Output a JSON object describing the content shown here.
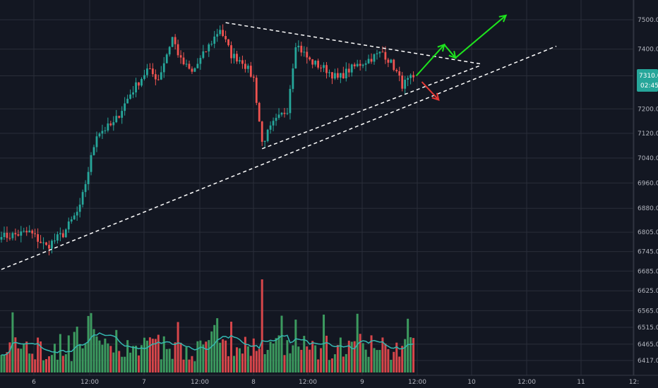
{
  "colors": {
    "background": "#131722",
    "grid": "#2a2e39",
    "up": "#26a69a",
    "down": "#ef5350",
    "vol_up": "#3c9a5f",
    "vol_down": "#d6464a",
    "ma": "#35b7b0",
    "trendline": "#ffffff",
    "arrow_up": "#1ee31e",
    "arrow_down": "#e53935",
    "badge": "#26a69a",
    "axis_text": "#b2b5be"
  },
  "chart_data": {
    "type": "candlestick",
    "y_axis": {
      "ticks": [
        "7500.0",
        "7400.0",
        "7310.0",
        "7200.0",
        "7120.0",
        "7040.0",
        "6960.0",
        "6880.0",
        "6805.0",
        "6745.0",
        "6685.0",
        "6625.0",
        "6565.0",
        "6515.0",
        "6465.0",
        "6417.0"
      ],
      "scale": "log"
    },
    "x_axis": {
      "ticks": [
        "6",
        "12:00",
        "7",
        "12:00",
        "8",
        "12:00",
        "9",
        "12:00",
        "10",
        "12:00",
        "11",
        "12:"
      ]
    },
    "price_badge": {
      "value": "7310.0",
      "countdown": "02:45"
    },
    "anchors": {
      "start_price": 6790,
      "end_price": 7305
    },
    "candles_count": 148,
    "volume_ma": true,
    "annotations": [
      {
        "type": "trendline",
        "style": "dashed",
        "from": {
          "candle": 0,
          "price": 6690
        },
        "to": {
          "candle_ext": 198,
          "price": 7410
        }
      },
      {
        "type": "trendline",
        "style": "dashed",
        "from": {
          "candle": 93,
          "price": 7070
        },
        "to": {
          "candle_ext": 171,
          "price": 7345
        }
      },
      {
        "type": "trendline",
        "style": "dashed",
        "from": {
          "candle": 80,
          "price": 7490
        },
        "to": {
          "candle_ext": 171,
          "price": 7350
        }
      },
      {
        "type": "arrow",
        "direction": "up",
        "path_prices": [
          {
            "c": 148,
            "p": 7310
          },
          {
            "c": 158,
            "p": 7415
          },
          {
            "c": 162,
            "p": 7370
          },
          {
            "c": 180,
            "p": 7515
          }
        ]
      },
      {
        "type": "arrow",
        "direction": "down",
        "path_prices": [
          {
            "c": 150,
            "p": 7290
          },
          {
            "c": 156,
            "p": 7230
          }
        ]
      }
    ]
  }
}
